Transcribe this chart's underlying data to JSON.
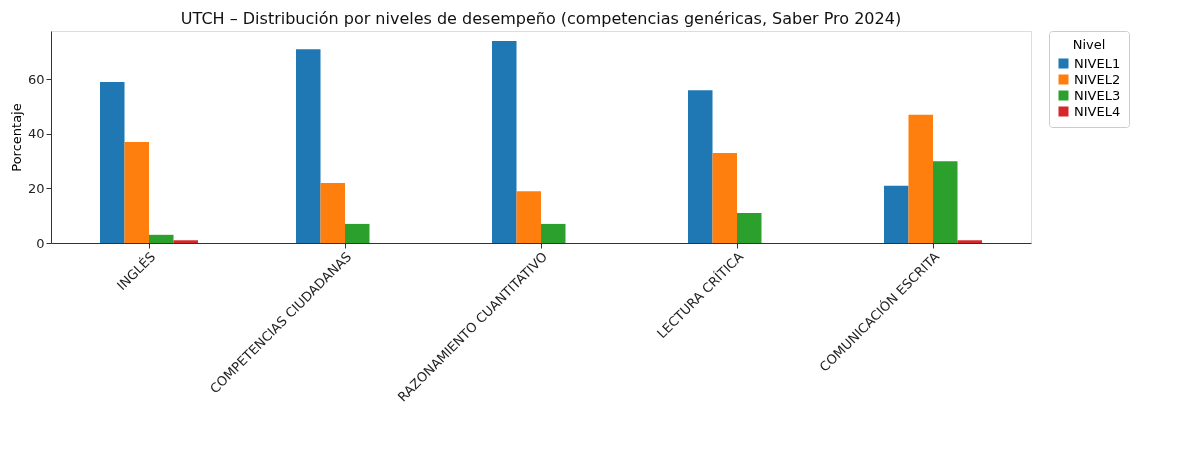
{
  "chart_data": {
    "type": "bar",
    "title": "UTCH – Distribución por niveles de desempeño (competencias genéricas, Saber Pro 2024)",
    "ylabel": "Porcentaje",
    "legend_title": "Nivel",
    "categories": [
      "INGLÉS",
      "COMPETENCIAS CIUDADANAS",
      "RAZONAMIENTO CUANTITATIVO",
      "LECTURA CRÍTICA",
      "COMUNICACIÓN ESCRITA"
    ],
    "series": [
      {
        "name": "NIVEL1",
        "color": "#1f77b4",
        "values": [
          59,
          71,
          74,
          56,
          21
        ]
      },
      {
        "name": "NIVEL2",
        "color": "#ff7f0e",
        "values": [
          37,
          22,
          19,
          33,
          47
        ]
      },
      {
        "name": "NIVEL3",
        "color": "#2ca02c",
        "values": [
          3,
          7,
          7,
          11,
          30
        ]
      },
      {
        "name": "NIVEL4",
        "color": "#d62728",
        "values": [
          1,
          0,
          0,
          0,
          1
        ]
      }
    ],
    "ylim": [
      0,
      77.7
    ],
    "yticks": [
      0,
      20,
      40,
      60
    ],
    "grid": false,
    "legend": "right"
  }
}
